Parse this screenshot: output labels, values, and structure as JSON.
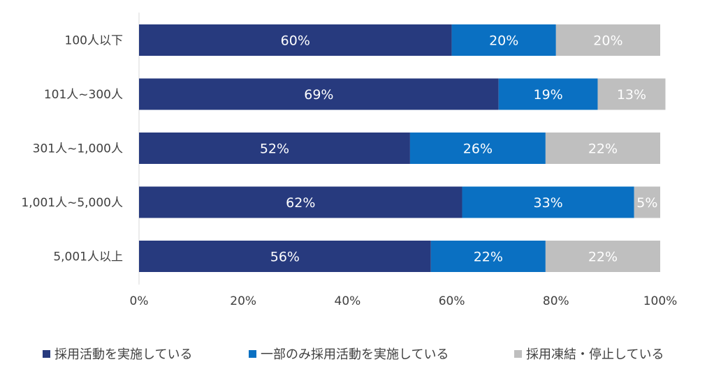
{
  "chart_data": {
    "type": "bar",
    "orientation": "horizontal",
    "stacked": true,
    "categories": [
      "100人以下",
      "101人~300人",
      "301人~1,000人",
      "1,001人~5,000人",
      "5,001人以上"
    ],
    "series": [
      {
        "name": "採用活動を実施している",
        "color": "#273a7e",
        "values": [
          60,
          69,
          52,
          62,
          56
        ],
        "labels": [
          "60%",
          "69%",
          "52%",
          "62%",
          "56%"
        ]
      },
      {
        "name": "一部のみ採用活動を実施している",
        "color": "#0a70c2",
        "values": [
          20,
          19,
          26,
          33,
          22
        ],
        "labels": [
          "20%",
          "19%",
          "26%",
          "33%",
          "22%"
        ]
      },
      {
        "name": "採用凍結・停止している",
        "color": "#bfbfbf",
        "values": [
          20,
          13,
          22,
          5,
          22
        ],
        "labels": [
          "20%",
          "13%",
          "22%",
          "5%",
          "22%"
        ]
      }
    ],
    "x_ticks": [
      "0%",
      "20%",
      "40%",
      "60%",
      "80%",
      "100%"
    ],
    "xlim": [
      0,
      100
    ],
    "legend_position": "bottom",
    "grid": false
  }
}
